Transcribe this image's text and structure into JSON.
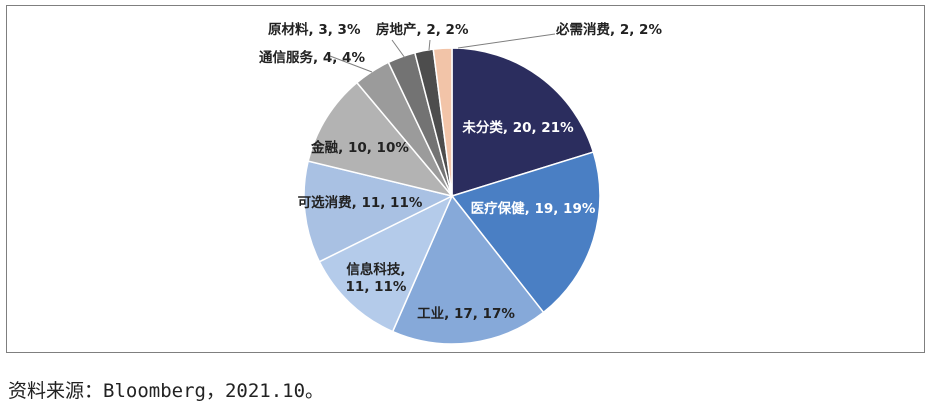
{
  "chart_data": {
    "type": "pie",
    "title": "",
    "slices": [
      {
        "name": "未分类",
        "value": 20,
        "percent": "21%",
        "label": "未分类, 20, 21%",
        "color": "#2b2d5e",
        "text_color": "#ffffff"
      },
      {
        "name": "医疗保健",
        "value": 19,
        "percent": "19%",
        "label": "医疗保健, 19, 19%",
        "color": "#4a7fc4",
        "text_color": "#ffffff"
      },
      {
        "name": "工业",
        "value": 17,
        "percent": "17%",
        "label": "工业, 17, 17%",
        "color": "#86a9d9",
        "text_color": "#222222"
      },
      {
        "name": "信息科技",
        "value": 11,
        "percent": "11%",
        "label": "信息科技, 11, 11%",
        "label_lines": [
          "信息科技,",
          "11, 11%"
        ],
        "color": "#b4cbea",
        "text_color": "#222222"
      },
      {
        "name": "可选消费",
        "value": 11,
        "percent": "11%",
        "label": "可选消费, 11, 11%",
        "color": "#a9c1e3",
        "text_color": "#222222"
      },
      {
        "name": "金融",
        "value": 10,
        "percent": "10%",
        "label": "金融, 10, 10%",
        "color": "#b3b3b3",
        "text_color": "#222222"
      },
      {
        "name": "通信服务",
        "value": 4,
        "percent": "4%",
        "label": "通信服务, 4, 4%",
        "color": "#9b9b9b",
        "text_color": "#222222"
      },
      {
        "name": "原材料",
        "value": 3,
        "percent": "3%",
        "label": "原材料, 3, 3%",
        "color": "#737373",
        "text_color": "#222222"
      },
      {
        "name": "房地产",
        "value": 2,
        "percent": "2%",
        "label": "房地产, 2, 2%",
        "color": "#4d4d4d",
        "text_color": "#222222"
      },
      {
        "name": "必需消费",
        "value": 2,
        "percent": "2%",
        "label": "必需消费, 2, 2%",
        "color": "#f2c4a8",
        "text_color": "#222222"
      }
    ]
  },
  "source_note": "资料来源：Bloomberg，2021.10。"
}
